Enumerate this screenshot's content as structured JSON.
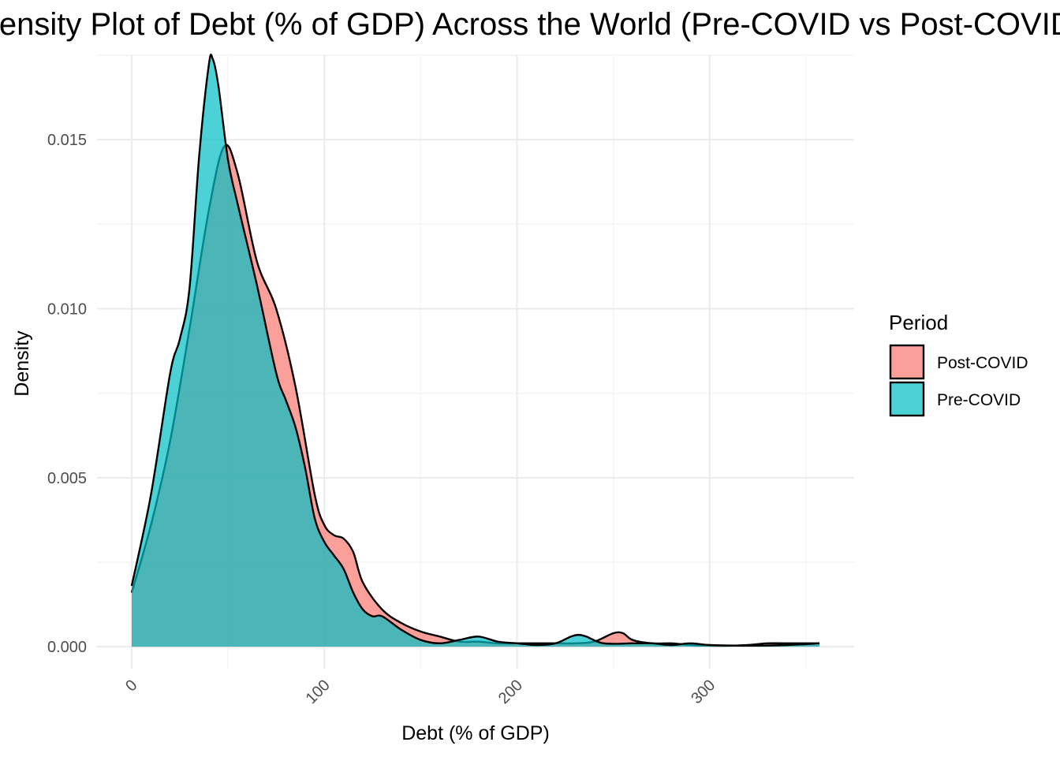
{
  "chart_data": {
    "type": "area",
    "title": "Density Plot of Debt (% of GDP) Across the World (Pre-COVID vs Post-COVID)",
    "xlabel": "Debt (% of GDP)",
    "ylabel": "Density",
    "xlim": [
      -18,
      375
    ],
    "ylim": [
      -0.00065,
      0.0175
    ],
    "x_ticks": [
      0,
      100,
      200,
      300
    ],
    "x_tick_labels": [
      "0",
      "100",
      "200",
      "300"
    ],
    "y_ticks": [
      0.0,
      0.005,
      0.01,
      0.015
    ],
    "y_tick_labels": [
      "0.000",
      "0.005",
      "0.010",
      "0.015"
    ],
    "grid": true,
    "legend": {
      "title": "Period",
      "position": "right",
      "entries": [
        "Post-COVID",
        "Pre-COVID"
      ]
    },
    "series": [
      {
        "name": "Post-COVID",
        "color": "#F8766D",
        "alpha": 0.7,
        "x": [
          0,
          10,
          20,
          30,
          40,
          48,
          55,
          65,
          75,
          85,
          95,
          100,
          105,
          110,
          115,
          120,
          130,
          140,
          150,
          160,
          170,
          180,
          190,
          200,
          210,
          220,
          230,
          240,
          250,
          255,
          260,
          270,
          280,
          290,
          300,
          310,
          320,
          330,
          340,
          357
        ],
        "values": [
          0.0016,
          0.0036,
          0.0061,
          0.0094,
          0.0129,
          0.0148,
          0.014,
          0.0114,
          0.01,
          0.0077,
          0.0045,
          0.0036,
          0.0033,
          0.0032,
          0.0028,
          0.0019,
          0.0011,
          0.0007,
          0.00045,
          0.0003,
          0.00015,
          0.00015,
          0.0001,
          0.0001,
          0.0001,
          0.0001,
          0.0001,
          0.00015,
          0.0004,
          0.0004,
          0.0002,
          0.0001,
          0.0001,
          5e-05,
          3e-05,
          3e-05,
          5e-05,
          0.0001,
          0.0001,
          0.0001
        ]
      },
      {
        "name": "Pre-COVID",
        "color": "#00BFC4",
        "alpha": 0.7,
        "x": [
          0,
          10,
          20,
          25,
          30,
          35,
          40,
          42,
          45,
          50,
          55,
          65,
          75,
          80,
          85,
          90,
          95,
          100,
          105,
          110,
          115,
          120,
          125,
          130,
          140,
          150,
          160,
          170,
          180,
          190,
          200,
          210,
          220,
          228,
          232,
          236,
          245,
          260,
          270,
          280,
          290,
          300,
          320,
          340,
          357
        ],
        "values": [
          0.0018,
          0.0045,
          0.0081,
          0.0091,
          0.0106,
          0.0145,
          0.0172,
          0.0174,
          0.0166,
          0.0144,
          0.0131,
          0.0107,
          0.0081,
          0.0073,
          0.0065,
          0.0053,
          0.0038,
          0.0031,
          0.0027,
          0.0023,
          0.0016,
          0.0011,
          0.0009,
          0.0009,
          0.0005,
          0.0002,
          0.0001,
          0.0002,
          0.0003,
          0.00015,
          0.0001,
          5e-05,
          0.0001,
          0.0003,
          0.00035,
          0.0003,
          0.0001,
          0.0001,
          0.0001,
          5e-05,
          0.0001,
          5e-05,
          3e-05,
          5e-05,
          0.0001
        ]
      }
    ]
  }
}
